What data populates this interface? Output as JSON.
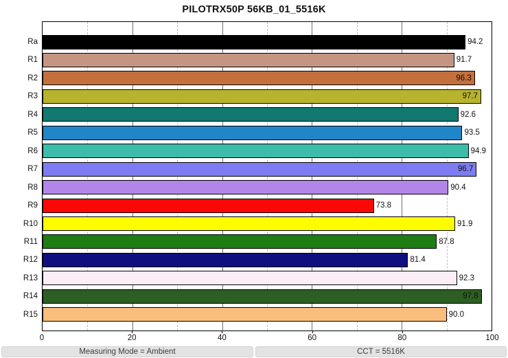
{
  "chart_data": {
    "type": "bar",
    "orientation": "horizontal",
    "title": "PILOTRX50P 56KB_01_5516K",
    "categories": [
      "Ra",
      "R1",
      "R2",
      "R3",
      "R4",
      "R5",
      "R6",
      "R7",
      "R8",
      "R9",
      "R10",
      "R11",
      "R12",
      "R13",
      "R14",
      "R15"
    ],
    "values": [
      94.2,
      91.7,
      96.3,
      97.7,
      92.6,
      93.5,
      94.9,
      96.7,
      90.4,
      73.8,
      91.9,
      87.8,
      81.4,
      92.3,
      97.8,
      90.0
    ],
    "value_labels": [
      "94.2",
      "91.7",
      "96.3",
      "97.7",
      "92.6",
      "93.5",
      "94.9",
      "96.7",
      "90.4",
      "73.8",
      "91.9",
      "87.8",
      "81.4",
      "92.3",
      "97.8",
      "90.0"
    ],
    "bar_colors": [
      "#000000",
      "#c59584",
      "#c4703c",
      "#b7b32e",
      "#11796f",
      "#2086c7",
      "#3dbcaa",
      "#7d7df1",
      "#b385e9",
      "#fb0806",
      "#fdfd00",
      "#1e7d13",
      "#0f0f80",
      "#fbeef7",
      "#2d5e23",
      "#f9bd7d"
    ],
    "xlim": [
      0,
      100
    ],
    "xlabel": "",
    "ylabel": "",
    "grid": true,
    "axis": {
      "tick_values": [
        0,
        20,
        40,
        60,
        80,
        100
      ],
      "tick_labels": [
        "0",
        "20",
        "40",
        "60",
        "80",
        "100"
      ],
      "major_gridlines": [
        20,
        40,
        60,
        80
      ],
      "minor_gridlines": [
        10,
        30,
        50,
        70,
        90
      ]
    },
    "inside_label_threshold": 95.5
  },
  "footer": {
    "left": "Measuring Mode = Ambient",
    "right": "CCT = 5516K"
  }
}
